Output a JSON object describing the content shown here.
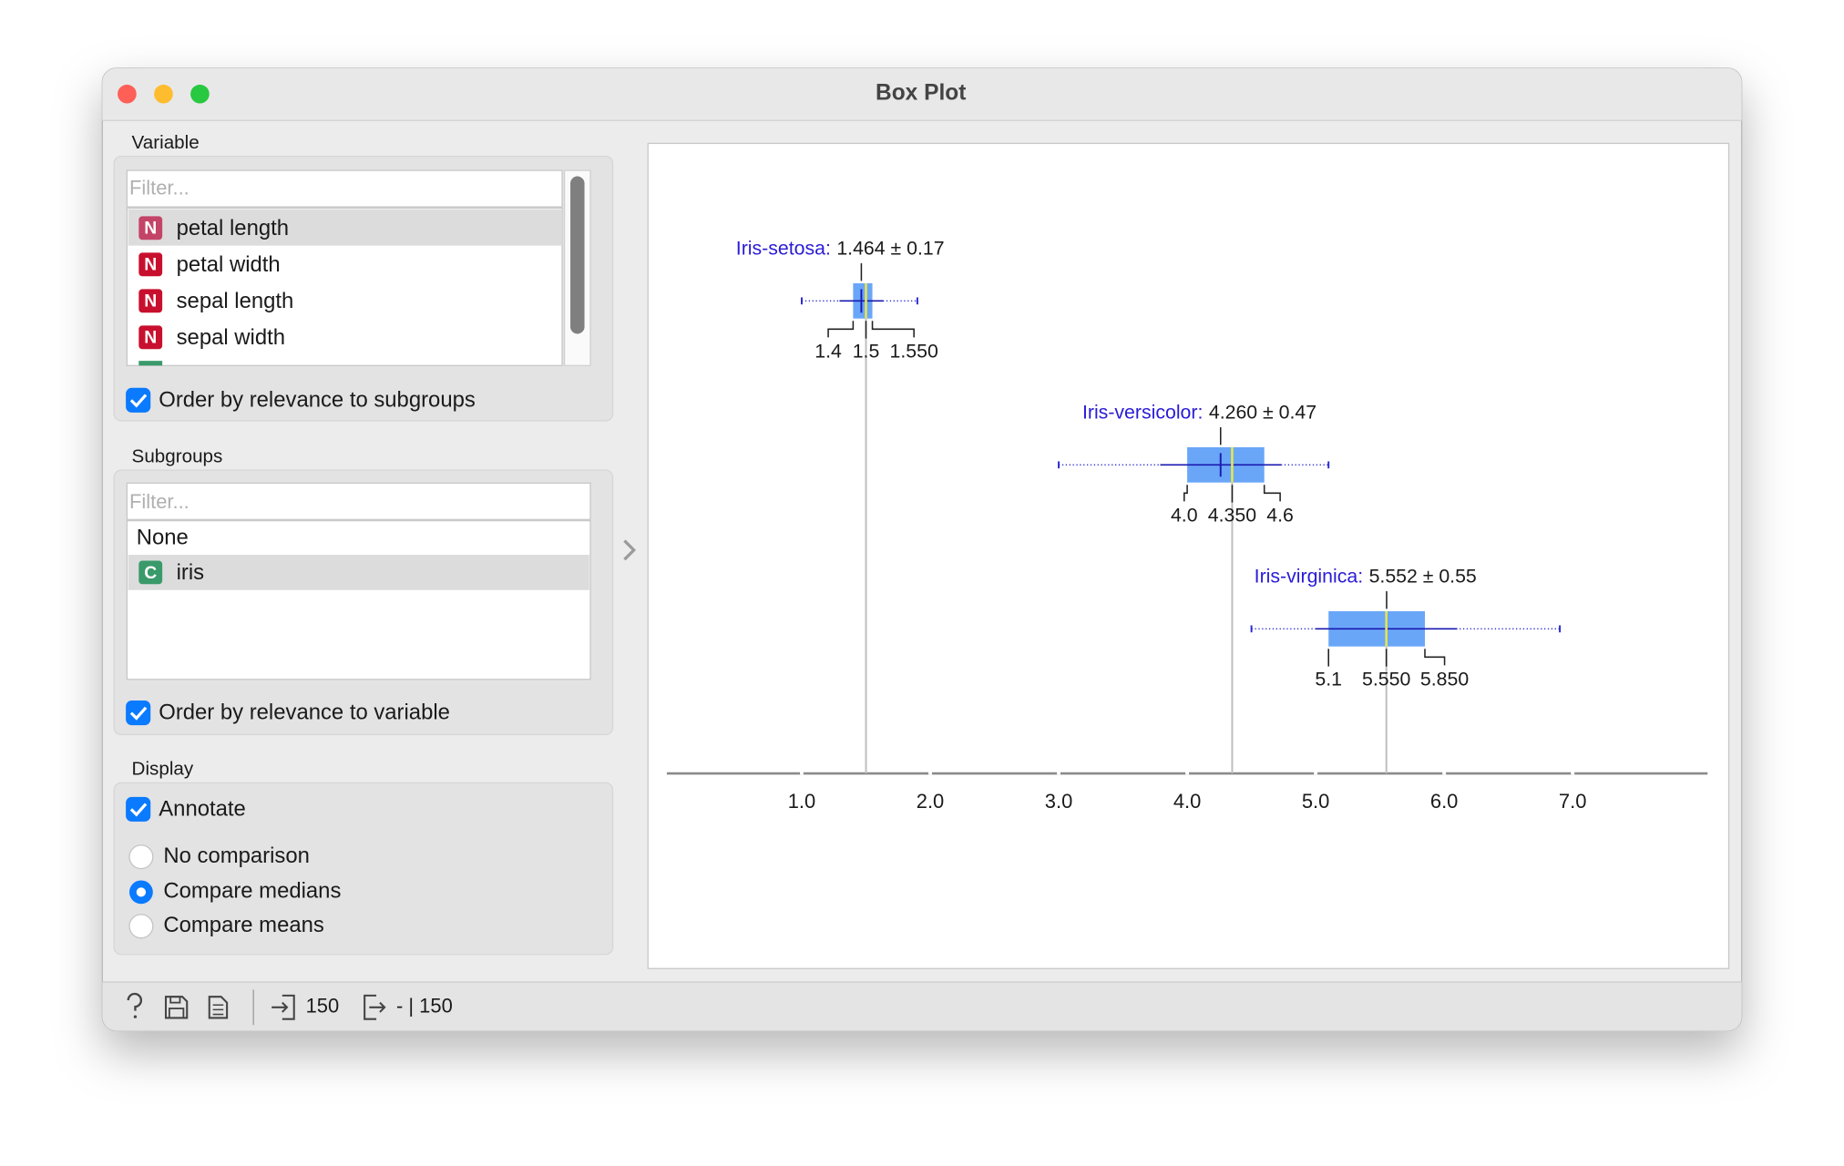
{
  "window": {
    "title": "Box Plot"
  },
  "controls": {
    "variable": {
      "label": "Variable",
      "filter_placeholder": "Filter...",
      "items": [
        {
          "badge": "N",
          "name": "petal length"
        },
        {
          "badge": "N",
          "name": "petal width"
        },
        {
          "badge": "N",
          "name": "sepal length"
        },
        {
          "badge": "N",
          "name": "sepal width"
        }
      ],
      "order_checkbox": "Order by relevance to subgroups"
    },
    "subgroups": {
      "label": "Subgroups",
      "filter_placeholder": "Filter...",
      "items": [
        {
          "name": "None"
        },
        {
          "badge": "C",
          "name": "iris"
        }
      ],
      "order_checkbox": "Order by relevance to variable"
    },
    "display": {
      "label": "Display",
      "annotate": "Annotate",
      "options": [
        "No comparison",
        "Compare medians",
        "Compare means"
      ]
    }
  },
  "status": {
    "input": "150",
    "output": "- | 150"
  },
  "chart_data": {
    "type": "boxplot",
    "xlim": [
      -0.05,
      8.05
    ],
    "xticks": [
      {
        "value": 1,
        "label": "1.0"
      },
      {
        "value": 2,
        "label": "2.0"
      },
      {
        "value": 3,
        "label": "3.0"
      },
      {
        "value": 4,
        "label": "4.0"
      },
      {
        "value": 5,
        "label": "5.0"
      },
      {
        "value": 6,
        "label": "6.0"
      },
      {
        "value": 7,
        "label": "7.0"
      }
    ],
    "series": [
      {
        "name": "Iris-setosa:",
        "min": 1.0,
        "q1": 1.4,
        "median": 1.5,
        "q3": 1.55,
        "max": 1.9,
        "mean": 1.464,
        "sd": 0.17,
        "annotation": "1.464 ± 0.17",
        "quartile_labels": [
          "1.4",
          "1.5",
          "1.550"
        ]
      },
      {
        "name": "Iris-versicolor:",
        "min": 3.0,
        "q1": 4.0,
        "median": 4.35,
        "q3": 4.6,
        "max": 5.1,
        "mean": 4.26,
        "sd": 0.47,
        "annotation": "4.260 ± 0.47",
        "quartile_labels": [
          "4.0",
          "4.350",
          "4.6"
        ]
      },
      {
        "name": "Iris-virginica:",
        "min": 4.5,
        "q1": 5.1,
        "median": 5.55,
        "q3": 5.85,
        "max": 6.9,
        "mean": 5.552,
        "sd": 0.55,
        "annotation": "5.552 ± 0.55",
        "quartile_labels": [
          "5.1",
          "5.550",
          "5.850"
        ]
      }
    ]
  }
}
